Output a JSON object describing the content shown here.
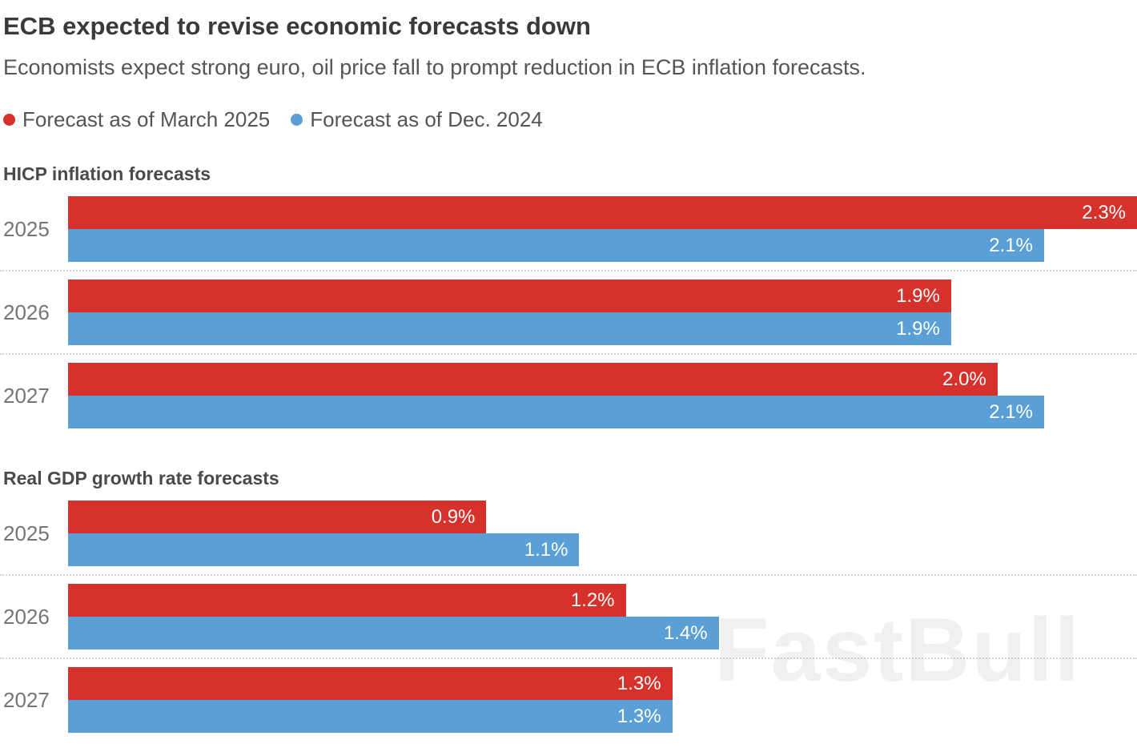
{
  "header": {
    "title": "ECB expected to revise economic forecasts down",
    "subtitle": "Economists expect strong euro, oil price fall to prompt reduction in ECB inflation forecasts."
  },
  "legend": [
    {
      "label": "Forecast as of March 2025",
      "color": "#d6312a"
    },
    {
      "label": "Forecast as of Dec. 2024",
      "color": "#5a9fd6"
    }
  ],
  "colors": {
    "march_2025": "#d6312a",
    "dec_2024": "#5a9fd6"
  },
  "watermark": "FastBull",
  "chart_data": [
    {
      "type": "bar",
      "orientation": "horizontal",
      "title": "HICP inflation forecasts",
      "categories": [
        "2025",
        "2026",
        "2027"
      ],
      "xlim": [
        0,
        2.3
      ],
      "grid": false,
      "legend_position": "top",
      "series": [
        {
          "name": "Forecast as of March 2025",
          "color": "#d6312a",
          "values": [
            2.3,
            1.9,
            2.0
          ],
          "labels": [
            "2.3%",
            "1.9%",
            "2.0%"
          ]
        },
        {
          "name": "Forecast as of Dec. 2024",
          "color": "#5a9fd6",
          "values": [
            2.1,
            1.9,
            2.1
          ],
          "labels": [
            "2.1%",
            "1.9%",
            "2.1%"
          ]
        }
      ]
    },
    {
      "type": "bar",
      "orientation": "horizontal",
      "title": "Real GDP growth rate forecasts",
      "categories": [
        "2025",
        "2026",
        "2027"
      ],
      "xlim": [
        0,
        2.3
      ],
      "grid": false,
      "legend_position": "top",
      "series": [
        {
          "name": "Forecast as of March 2025",
          "color": "#d6312a",
          "values": [
            0.9,
            1.2,
            1.3
          ],
          "labels": [
            "0.9%",
            "1.2%",
            "1.3%"
          ]
        },
        {
          "name": "Forecast as of Dec. 2024",
          "color": "#5a9fd6",
          "values": [
            1.1,
            1.4,
            1.3
          ],
          "labels": [
            "1.1%",
            "1.4%",
            "1.3%"
          ]
        }
      ]
    }
  ]
}
